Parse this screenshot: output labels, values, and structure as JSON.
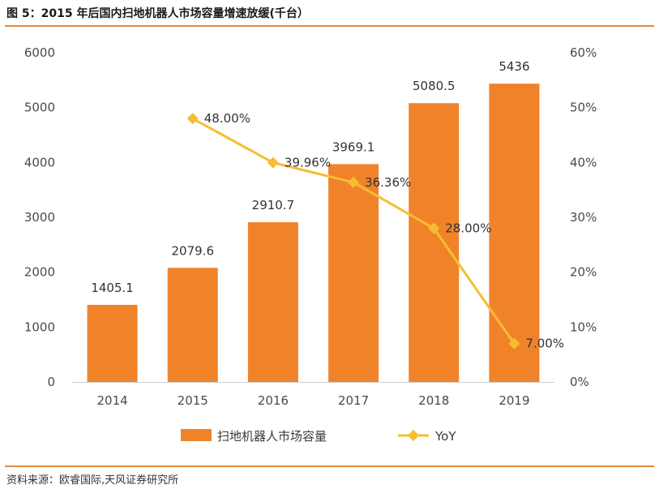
{
  "title": "图 5：2015 年后国内扫地机器人市场容量增速放缓(千台）",
  "source": "资料来源：欧睿国际,天风证券研究所",
  "colors": {
    "accent_rule": "#e5893a",
    "bar": "#f0832a",
    "line": "#f6bd33"
  },
  "chart_data": {
    "type": "bar+line",
    "categories": [
      "2014",
      "2015",
      "2016",
      "2017",
      "2018",
      "2019"
    ],
    "series": [
      {
        "name": "扫地机器人市场容量",
        "type": "bar",
        "axis": "left",
        "values": [
          1405.1,
          2079.6,
          2910.7,
          3969.1,
          5080.5,
          5436
        ],
        "labels": [
          "1405.1",
          "2079.6",
          "2910.7",
          "3969.1",
          "5080.5",
          "5436"
        ]
      },
      {
        "name": "YoY",
        "type": "line",
        "axis": "right",
        "values": [
          null,
          48.0,
          39.96,
          36.36,
          28.0,
          7.0
        ],
        "labels": [
          "",
          "48.00%",
          "39.96%",
          "36.36%",
          "28.00%",
          "7.00%"
        ]
      }
    ],
    "y_left": {
      "min": 0,
      "max": 6000,
      "ticks": [
        "0",
        "1000",
        "2000",
        "3000",
        "4000",
        "5000",
        "6000"
      ]
    },
    "y_right": {
      "min": 0,
      "max": 60,
      "ticks": [
        "0%",
        "10%",
        "20%",
        "30%",
        "40%",
        "50%",
        "60%"
      ]
    },
    "legend": {
      "position": "bottom"
    },
    "grid": false
  }
}
